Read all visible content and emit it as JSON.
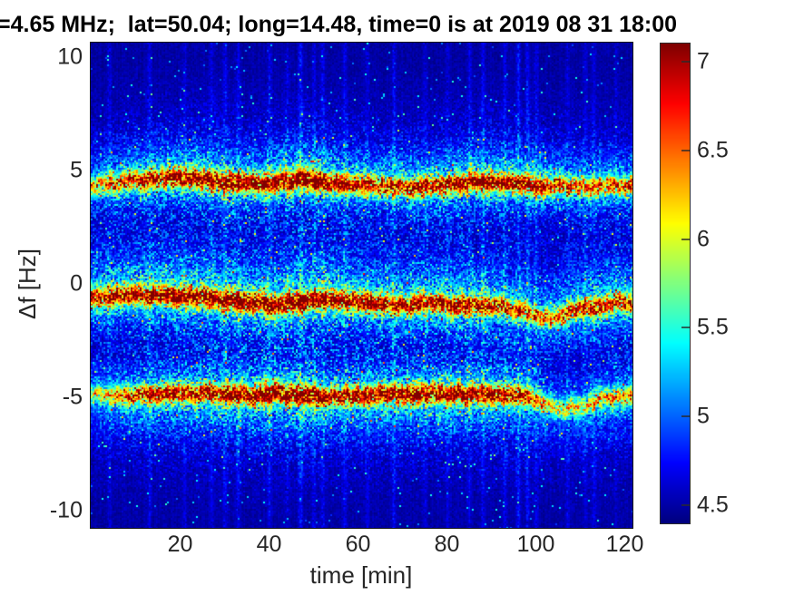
{
  "chart_data": {
    "type": "heatmap",
    "title": "=4.65 MHz;  lat=50.04; long=14.48, time=0 is at 2019 08 31 18:00",
    "xlabel": "time [min]",
    "ylabel": "Δf [Hz]",
    "x_range": [
      0,
      121.7
    ],
    "y_range": [
      -10.76,
      10.64
    ],
    "x_ticks": [
      20,
      40,
      60,
      80,
      100,
      120
    ],
    "y_ticks": [
      10,
      5,
      0,
      -5,
      -10
    ],
    "grid": false,
    "colormap": "jet",
    "color_axis": [
      4.4,
      7.1
    ],
    "colorbar_ticks": [
      7,
      6.5,
      6,
      5.5,
      5,
      4.5
    ],
    "background_level": 4.46,
    "noise_amplitude": 0.13,
    "bands": [
      {
        "name": "upper-doppler-trace",
        "sigma_core": 0.28,
        "sigma_up": 0.95,
        "sigma_down": 0.7,
        "points": [
          [
            0,
            4.35,
            1.7
          ],
          [
            6,
            4.45,
            2.0
          ],
          [
            12,
            4.6,
            2.2
          ],
          [
            18,
            4.7,
            2.3
          ],
          [
            24,
            4.6,
            2.5
          ],
          [
            30,
            4.5,
            2.6
          ],
          [
            36,
            4.4,
            2.4
          ],
          [
            42,
            4.5,
            2.6
          ],
          [
            48,
            4.6,
            2.65
          ],
          [
            54,
            4.5,
            2.5
          ],
          [
            60,
            4.4,
            2.2
          ],
          [
            66,
            4.3,
            2.1
          ],
          [
            72,
            4.3,
            2.2
          ],
          [
            78,
            4.35,
            2.3
          ],
          [
            84,
            4.5,
            2.5
          ],
          [
            90,
            4.55,
            2.5
          ],
          [
            96,
            4.45,
            2.3
          ],
          [
            102,
            4.35,
            2.2
          ],
          [
            108,
            4.3,
            2.0
          ],
          [
            114,
            4.3,
            1.9
          ],
          [
            121.7,
            4.4,
            2.0
          ]
        ]
      },
      {
        "name": "center-doppler-trace",
        "sigma_core": 0.28,
        "sigma_up": 1.15,
        "sigma_down": 0.8,
        "points": [
          [
            0,
            -0.6,
            2.3
          ],
          [
            8,
            -0.5,
            2.4
          ],
          [
            16,
            -0.5,
            2.5
          ],
          [
            24,
            -0.6,
            2.6
          ],
          [
            32,
            -0.75,
            2.6
          ],
          [
            40,
            -0.9,
            2.65
          ],
          [
            46,
            -0.75,
            2.65
          ],
          [
            52,
            -0.6,
            2.65
          ],
          [
            58,
            -0.7,
            2.5
          ],
          [
            64,
            -0.85,
            2.4
          ],
          [
            70,
            -0.9,
            2.3
          ],
          [
            76,
            -0.85,
            2.4
          ],
          [
            82,
            -0.9,
            2.35
          ],
          [
            88,
            -0.95,
            2.3
          ],
          [
            94,
            -1.0,
            2.1
          ],
          [
            99,
            -1.4,
            1.7
          ],
          [
            104,
            -1.45,
            1.9
          ],
          [
            110,
            -1.05,
            2.1
          ],
          [
            116,
            -0.9,
            2.2
          ],
          [
            121.7,
            -0.8,
            2.3
          ]
        ]
      },
      {
        "name": "lower-doppler-trace",
        "sigma_core": 0.28,
        "sigma_up": 0.8,
        "sigma_down": 1.05,
        "points": [
          [
            0,
            -4.85,
            1.4
          ],
          [
            6,
            -4.9,
            1.8
          ],
          [
            12,
            -4.9,
            2.1
          ],
          [
            18,
            -4.85,
            2.2
          ],
          [
            24,
            -4.8,
            2.3
          ],
          [
            30,
            -4.85,
            2.45
          ],
          [
            37,
            -4.9,
            2.6
          ],
          [
            43,
            -4.8,
            2.65
          ],
          [
            48,
            -4.9,
            2.5
          ],
          [
            54,
            -4.95,
            2.4
          ],
          [
            60,
            -4.9,
            2.4
          ],
          [
            66,
            -4.85,
            2.4
          ],
          [
            72,
            -4.85,
            2.4
          ],
          [
            78,
            -4.8,
            2.45
          ],
          [
            84,
            -4.8,
            2.45
          ],
          [
            90,
            -4.85,
            2.4
          ],
          [
            96,
            -4.9,
            2.2
          ],
          [
            100,
            -5.1,
            1.8
          ],
          [
            105,
            -5.5,
            1.4
          ],
          [
            110,
            -5.35,
            1.5
          ],
          [
            115,
            -5.1,
            1.6
          ],
          [
            121.7,
            -4.85,
            1.8
          ]
        ]
      }
    ],
    "streaks": [
      [
        4,
        0.35
      ],
      [
        13,
        0.5
      ],
      [
        21,
        0.35
      ],
      [
        27,
        0.45
      ],
      [
        30,
        0.55
      ],
      [
        33,
        0.5
      ],
      [
        40,
        0.6
      ],
      [
        44,
        0.4
      ],
      [
        47,
        0.75
      ],
      [
        50,
        0.45
      ],
      [
        52,
        0.55
      ],
      [
        57,
        0.5
      ],
      [
        62,
        0.4
      ],
      [
        68,
        0.65
      ],
      [
        75,
        0.35
      ],
      [
        80,
        0.3
      ],
      [
        85,
        0.45
      ],
      [
        88,
        0.55
      ],
      [
        93,
        0.5
      ],
      [
        96,
        0.7
      ],
      [
        98,
        0.65
      ],
      [
        100,
        0.5
      ],
      [
        107,
        0.4
      ],
      [
        111,
        0.35
      ],
      [
        113,
        0.45
      ],
      [
        118,
        0.3
      ]
    ]
  },
  "colors": {
    "figure_bg": "#ffffff",
    "tick_text": "#262626",
    "title_text": "#000000",
    "frame": "#151515",
    "colormap_low": "#00008f",
    "colormap_high": "#800000"
  }
}
